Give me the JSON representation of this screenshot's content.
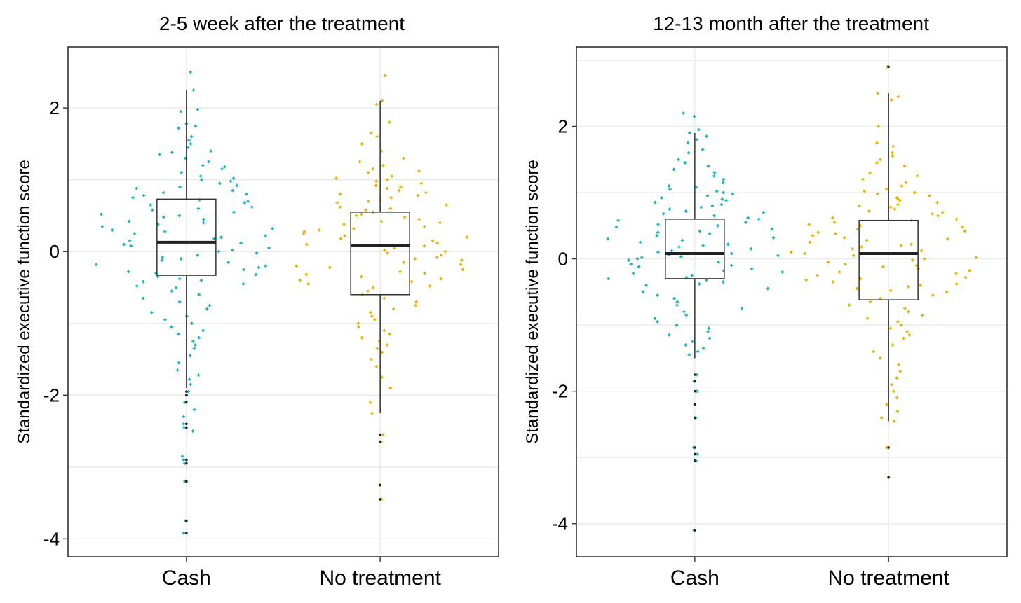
{
  "chart_data": [
    {
      "type": "box",
      "title": "2-5 week after the treatment",
      "ylabel": "Standardized executive function score",
      "categories": [
        "Cash",
        "No treatment"
      ],
      "yticks": [
        2,
        0,
        -2,
        -4
      ],
      "ylim": [
        -4.25,
        2.85
      ],
      "grid": true,
      "colors": [
        "#1ab3c2",
        "#e6b400"
      ],
      "boxes": [
        {
          "name": "Cash",
          "q1": -0.33,
          "median": 0.13,
          "q3": 0.73,
          "whisker_low": -1.9,
          "whisker_high": 2.25,
          "outliers": [
            -1.95,
            -2.0,
            -2.1,
            -2.4,
            -2.45,
            -2.9,
            -2.95,
            -3.2,
            -3.75,
            -3.92
          ],
          "points": [
            2.5,
            2.25,
            1.98,
            1.95,
            1.78,
            1.75,
            1.72,
            1.6,
            1.55,
            1.5,
            1.45,
            1.4,
            1.38,
            1.35,
            1.3,
            1.25,
            1.2,
            1.18,
            1.15,
            1.1,
            1.05,
            1.02,
            1.0,
            0.98,
            0.95,
            0.92,
            0.9,
            0.88,
            0.85,
            0.82,
            0.8,
            0.78,
            0.75,
            0.72,
            0.7,
            0.68,
            0.65,
            0.62,
            0.6,
            0.58,
            0.55,
            0.52,
            0.5,
            0.48,
            0.45,
            0.42,
            0.4,
            0.38,
            0.35,
            0.32,
            0.3,
            0.28,
            0.25,
            0.22,
            0.2,
            0.18,
            0.15,
            0.12,
            0.1,
            0.08,
            0.05,
            0.02,
            0.0,
            -0.02,
            -0.05,
            -0.08,
            -0.1,
            -0.12,
            -0.15,
            -0.18,
            -0.2,
            -0.22,
            -0.25,
            -0.28,
            -0.3,
            -0.32,
            -0.35,
            -0.38,
            -0.4,
            -0.42,
            -0.45,
            -0.48,
            -0.5,
            -0.55,
            -0.6,
            -0.65,
            -0.7,
            -0.75,
            -0.8,
            -0.85,
            -0.9,
            -0.95,
            -1.0,
            -1.05,
            -1.1,
            -1.15,
            -1.2,
            -1.25,
            -1.3,
            -1.35,
            -1.45,
            -1.55,
            -1.65,
            -1.72,
            -1.78,
            -1.85,
            -1.95,
            -2.0,
            -2.1,
            -2.2,
            -2.3,
            -2.4,
            -2.45,
            -2.5,
            -2.85,
            -2.9,
            -2.95,
            -3.2,
            -3.75,
            -3.92
          ]
        },
        {
          "name": "No treatment",
          "q1": -0.6,
          "median": 0.08,
          "q3": 0.55,
          "whisker_low": -2.25,
          "whisker_high": 2.1,
          "outliers": [
            -2.55,
            -2.65,
            -3.25,
            -3.45
          ],
          "points": [
            2.45,
            2.1,
            2.05,
            1.8,
            1.65,
            1.6,
            1.5,
            1.4,
            1.3,
            1.25,
            1.2,
            1.15,
            1.12,
            1.1,
            1.05,
            1.02,
            1.0,
            0.98,
            0.95,
            0.92,
            0.9,
            0.88,
            0.85,
            0.82,
            0.8,
            0.78,
            0.75,
            0.72,
            0.7,
            0.68,
            0.65,
            0.62,
            0.6,
            0.58,
            0.55,
            0.52,
            0.5,
            0.48,
            0.45,
            0.42,
            0.4,
            0.38,
            0.35,
            0.32,
            0.3,
            0.28,
            0.25,
            0.22,
            0.2,
            0.18,
            0.15,
            0.12,
            0.1,
            0.08,
            0.05,
            0.02,
            0.0,
            -0.02,
            -0.05,
            -0.08,
            -0.1,
            -0.12,
            -0.15,
            -0.18,
            -0.2,
            -0.22,
            -0.25,
            -0.28,
            -0.3,
            -0.32,
            -0.35,
            -0.38,
            -0.4,
            -0.42,
            -0.45,
            -0.48,
            -0.5,
            -0.55,
            -0.6,
            -0.65,
            -0.7,
            -0.75,
            -0.8,
            -0.85,
            -0.9,
            -0.95,
            -1.0,
            -1.05,
            -1.1,
            -1.15,
            -1.2,
            -1.25,
            -1.3,
            -1.35,
            -1.4,
            -1.5,
            -1.6,
            -1.75,
            -1.9,
            -2.1,
            -2.25,
            -2.55,
            -2.65,
            -3.25,
            -3.45
          ]
        }
      ]
    },
    {
      "type": "box",
      "title": "12-13 month after the treatment",
      "ylabel": "Standardized executive function score",
      "categories": [
        "Cash",
        "No treatment"
      ],
      "yticks": [
        2,
        0,
        -2,
        -4
      ],
      "ylim": [
        -4.5,
        3.2
      ],
      "grid": true,
      "colors": [
        "#1ab3c2",
        "#e6b400"
      ],
      "boxes": [
        {
          "name": "Cash",
          "q1": -0.3,
          "median": 0.08,
          "q3": 0.6,
          "whisker_low": -1.5,
          "whisker_high": 1.9,
          "outliers": [
            -1.75,
            -1.85,
            -2.0,
            -2.2,
            -2.4,
            -2.85,
            -2.95,
            -3.05,
            -4.1
          ],
          "points": [
            2.2,
            2.15,
            1.95,
            1.9,
            1.85,
            1.8,
            1.75,
            1.65,
            1.6,
            1.5,
            1.45,
            1.4,
            1.35,
            1.3,
            1.25,
            1.2,
            1.15,
            1.1,
            1.08,
            1.05,
            1.02,
            1.0,
            0.98,
            0.95,
            0.92,
            0.9,
            0.88,
            0.85,
            0.82,
            0.8,
            0.78,
            0.75,
            0.72,
            0.7,
            0.68,
            0.65,
            0.62,
            0.6,
            0.58,
            0.55,
            0.52,
            0.5,
            0.48,
            0.45,
            0.42,
            0.4,
            0.38,
            0.35,
            0.32,
            0.3,
            0.28,
            0.25,
            0.22,
            0.2,
            0.18,
            0.15,
            0.12,
            0.1,
            0.08,
            0.06,
            0.05,
            0.03,
            0.02,
            0.0,
            -0.02,
            -0.05,
            -0.08,
            -0.1,
            -0.12,
            -0.15,
            -0.18,
            -0.2,
            -0.22,
            -0.25,
            -0.28,
            -0.3,
            -0.32,
            -0.35,
            -0.38,
            -0.4,
            -0.45,
            -0.5,
            -0.55,
            -0.6,
            -0.65,
            -0.7,
            -0.75,
            -0.8,
            -0.85,
            -0.9,
            -0.95,
            -1.0,
            -1.05,
            -1.1,
            -1.15,
            -1.2,
            -1.25,
            -1.3,
            -1.35,
            -1.4,
            -1.45,
            -1.75,
            -1.85,
            -2.0,
            -2.2,
            -2.4,
            -2.85,
            -2.95,
            -3.05,
            -4.1
          ]
        },
        {
          "name": "No treatment",
          "q1": -0.62,
          "median": 0.08,
          "q3": 0.58,
          "whisker_low": -2.45,
          "whisker_high": 2.5,
          "outliers": [
            2.9,
            -2.85,
            -3.3
          ],
          "points": [
            2.9,
            2.5,
            2.45,
            2.4,
            2.0,
            1.75,
            1.7,
            1.6,
            1.55,
            1.5,
            1.45,
            1.4,
            1.3,
            1.25,
            1.2,
            1.15,
            1.1,
            1.05,
            1.02,
            1.0,
            0.98,
            0.95,
            0.92,
            0.9,
            0.88,
            0.85,
            0.82,
            0.8,
            0.78,
            0.75,
            0.72,
            0.7,
            0.68,
            0.65,
            0.62,
            0.6,
            0.58,
            0.55,
            0.52,
            0.5,
            0.48,
            0.45,
            0.42,
            0.4,
            0.38,
            0.35,
            0.32,
            0.3,
            0.28,
            0.25,
            0.22,
            0.2,
            0.18,
            0.15,
            0.12,
            0.1,
            0.08,
            0.05,
            0.02,
            0.0,
            -0.02,
            -0.05,
            -0.08,
            -0.1,
            -0.12,
            -0.15,
            -0.18,
            -0.2,
            -0.22,
            -0.25,
            -0.28,
            -0.3,
            -0.32,
            -0.35,
            -0.38,
            -0.4,
            -0.42,
            -0.45,
            -0.48,
            -0.5,
            -0.55,
            -0.6,
            -0.65,
            -0.7,
            -0.75,
            -0.8,
            -0.85,
            -0.9,
            -0.95,
            -1.0,
            -1.05,
            -1.1,
            -1.15,
            -1.2,
            -1.3,
            -1.4,
            -1.5,
            -1.6,
            -1.7,
            -1.8,
            -1.9,
            -2.0,
            -2.1,
            -2.2,
            -2.3,
            -2.4,
            -2.45,
            -2.85,
            -3.3
          ]
        }
      ]
    }
  ]
}
